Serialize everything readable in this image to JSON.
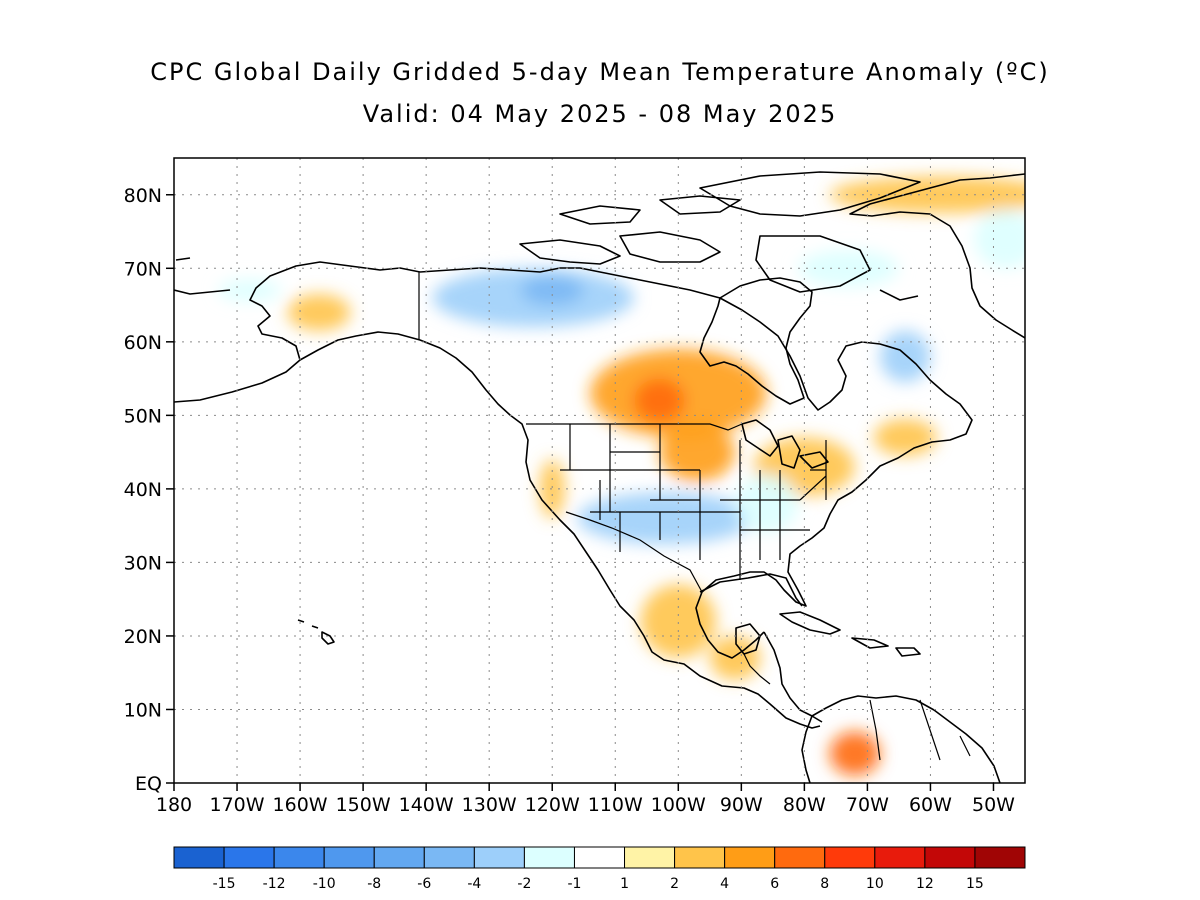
{
  "title": {
    "line1": "CPC Global Daily Gridded 5-day Mean Temperature Anomaly (ºC)",
    "line2": "Valid: 04 May 2025 - 08 May 2025"
  },
  "map": {
    "lon_range": [
      -180,
      -45
    ],
    "lat_range": [
      0,
      85
    ],
    "grid": "dotted",
    "lat_ticks": [
      {
        "value": 80,
        "label": "80N"
      },
      {
        "value": 70,
        "label": "70N"
      },
      {
        "value": 60,
        "label": "60N"
      },
      {
        "value": 50,
        "label": "50N"
      },
      {
        "value": 40,
        "label": "40N"
      },
      {
        "value": 30,
        "label": "30N"
      },
      {
        "value": 20,
        "label": "20N"
      },
      {
        "value": 10,
        "label": "10N"
      },
      {
        "value": 0,
        "label": "EQ"
      }
    ],
    "lon_ticks": [
      {
        "value": -180,
        "label": "180"
      },
      {
        "value": -170,
        "label": "170W"
      },
      {
        "value": -160,
        "label": "160W"
      },
      {
        "value": -150,
        "label": "150W"
      },
      {
        "value": -140,
        "label": "140W"
      },
      {
        "value": -130,
        "label": "130W"
      },
      {
        "value": -120,
        "label": "120W"
      },
      {
        "value": -110,
        "label": "110W"
      },
      {
        "value": -100,
        "label": "100W"
      },
      {
        "value": -90,
        "label": "90W"
      },
      {
        "value": -80,
        "label": "80W"
      },
      {
        "value": -70,
        "label": "70W"
      },
      {
        "value": -60,
        "label": "60W"
      },
      {
        "value": -50,
        "label": "50W"
      }
    ]
  },
  "colorbar": {
    "colors": [
      "#1a62d1",
      "#2a76ea",
      "#3b87ec",
      "#4f98ee",
      "#63a8f1",
      "#7ab8f4",
      "#9dcffa",
      "#dcffff",
      "#ffffff",
      "#fff3a6",
      "#ffc44a",
      "#ff9d16",
      "#ff6a0e",
      "#ff3a0a",
      "#e81b0c",
      "#c30707",
      "#a00505"
    ],
    "labels": [
      "-15",
      "-12",
      "-10",
      "-8",
      "-6",
      "-4",
      "-2",
      "-1",
      "1",
      "2",
      "4",
      "6",
      "8",
      "10",
      "12",
      "15"
    ]
  },
  "chart_data": {
    "type": "heatmap",
    "title": "CPC Global Daily Gridded 5-day Mean Temperature Anomaly (ºC)",
    "subtitle": "Valid: 04 May 2025 - 08 May 2025",
    "x_range": [
      -180,
      -45
    ],
    "y_range": [
      0,
      85
    ],
    "levels": [
      -15,
      -12,
      -10,
      -8,
      -6,
      -4,
      -2,
      -1,
      1,
      2,
      4,
      6,
      8,
      10,
      12,
      15
    ],
    "regions": [
      {
        "lon": -100,
        "lat": 53,
        "rx": 14,
        "ry": 6,
        "value": 4
      },
      {
        "lon": -103,
        "lat": 52,
        "rx": 4,
        "ry": 3,
        "value": 6
      },
      {
        "lon": -97,
        "lat": 45,
        "rx": 6,
        "ry": 4,
        "value": 4
      },
      {
        "lon": -80,
        "lat": 43,
        "rx": 8,
        "ry": 4,
        "value": 3
      },
      {
        "lon": -64,
        "lat": 47,
        "rx": 5,
        "ry": 2.5,
        "value": 3
      },
      {
        "lon": -102,
        "lat": 36,
        "rx": 14,
        "ry": 3.5,
        "value": -3
      },
      {
        "lon": -86,
        "lat": 38,
        "rx": 5,
        "ry": 4,
        "value": -2
      },
      {
        "lon": -123,
        "lat": 66,
        "rx": 16,
        "ry": 4,
        "value": -3
      },
      {
        "lon": -120,
        "lat": 67,
        "rx": 5,
        "ry": 2,
        "value": -5
      },
      {
        "lon": -64,
        "lat": 58,
        "rx": 4,
        "ry": 3.5,
        "value": -3
      },
      {
        "lon": -73,
        "lat": 70,
        "rx": 8,
        "ry": 2.5,
        "value": -2
      },
      {
        "lon": -58,
        "lat": 80,
        "rx": 18,
        "ry": 2.5,
        "value": 3
      },
      {
        "lon": -157,
        "lat": 64,
        "rx": 5,
        "ry": 2.5,
        "value": 3
      },
      {
        "lon": -168,
        "lat": 67,
        "rx": 5,
        "ry": 1.5,
        "value": -2
      },
      {
        "lon": -72,
        "lat": 4,
        "rx": 4,
        "ry": 3,
        "value": 6
      },
      {
        "lon": -100,
        "lat": 22,
        "rx": 6,
        "ry": 5,
        "value": 2
      },
      {
        "lon": -91,
        "lat": 17,
        "rx": 4,
        "ry": 3,
        "value": 3
      },
      {
        "lon": -48,
        "lat": 74,
        "rx": 5,
        "ry": 4,
        "value": -2
      },
      {
        "lon": -120,
        "lat": 40,
        "rx": 2,
        "ry": 4,
        "value": 2
      }
    ]
  }
}
